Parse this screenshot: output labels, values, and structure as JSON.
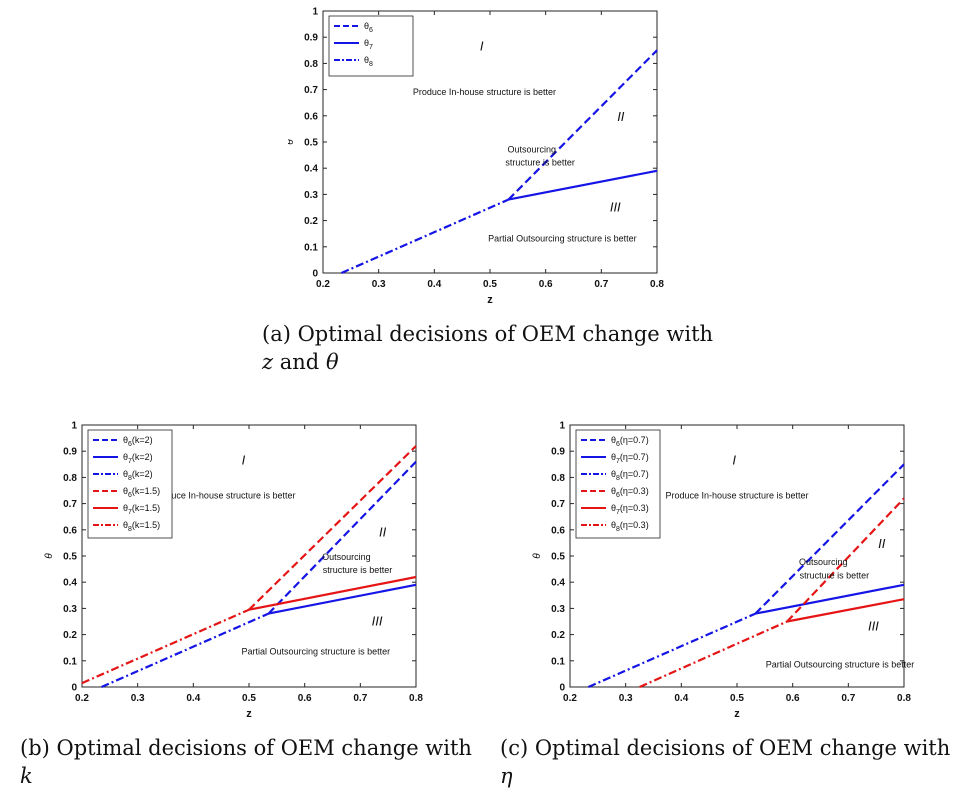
{
  "colors": {
    "blue": "#1515e6",
    "red": "#e51515",
    "axis": "#262626",
    "text": "#111111"
  },
  "chart_data": [
    {
      "id": "a",
      "type": "line",
      "caption": {
        "prefix": "(a) Optimal decisions of OEM change with",
        "var1": "z",
        "conj": "and",
        "var2": "θ"
      },
      "xlabel": "z",
      "ylabel": "θ",
      "xlim": [
        0.2,
        0.8
      ],
      "ylim": [
        0,
        1
      ],
      "xticks": [
        "0.2",
        "0.3",
        "0.4",
        "0.5",
        "0.6",
        "0.7",
        "0.8"
      ],
      "yticks": [
        "0",
        "0.1",
        "0.2",
        "0.3",
        "0.4",
        "0.5",
        "0.6",
        "0.7",
        "0.8",
        "0.9",
        "1"
      ],
      "grid": false,
      "legend_position": "top-left",
      "series": [
        {
          "base": "θ",
          "sub": "6",
          "param": "",
          "color": "blue",
          "style": "dashed",
          "x": [
            0.533,
            0.8
          ],
          "y": [
            0.28,
            0.85
          ]
        },
        {
          "base": "θ",
          "sub": "7",
          "param": "",
          "color": "blue",
          "style": "solid",
          "x": [
            0.533,
            0.8
          ],
          "y": [
            0.28,
            0.39
          ]
        },
        {
          "base": "θ",
          "sub": "8",
          "param": "",
          "color": "blue",
          "style": "dashdot",
          "x": [
            0.233,
            0.533
          ],
          "y": [
            0.0,
            0.28
          ]
        }
      ],
      "annotations": [
        {
          "text": "I",
          "x": 0.485,
          "y": 0.85,
          "italic": true,
          "size": 13
        },
        {
          "text": "Produce In-house structure is better",
          "x": 0.49,
          "y": 0.68,
          "italic": false,
          "size": 9
        },
        {
          "text": "II",
          "x": 0.735,
          "y": 0.58,
          "italic": true,
          "size": 13
        },
        {
          "text": "Outsourcing",
          "x": 0.575,
          "y": 0.46,
          "italic": false,
          "size": 9
        },
        {
          "text": "structure is better",
          "x": 0.59,
          "y": 0.41,
          "italic": false,
          "size": 9
        },
        {
          "text": "III",
          "x": 0.725,
          "y": 0.235,
          "italic": true,
          "size": 13
        },
        {
          "text": "Partial Outsourcing structure is better",
          "x": 0.63,
          "y": 0.12,
          "italic": false,
          "size": 9
        }
      ]
    },
    {
      "id": "b",
      "type": "line",
      "caption": {
        "prefix": "(b) Optimal decisions of OEM change with",
        "var1": "k",
        "conj": "",
        "var2": ""
      },
      "xlabel": "z",
      "ylabel": "θ",
      "xlim": [
        0.2,
        0.8
      ],
      "ylim": [
        0,
        1
      ],
      "xticks": [
        "0.2",
        "0.3",
        "0.4",
        "0.5",
        "0.6",
        "0.7",
        "0.8"
      ],
      "yticks": [
        "0",
        "0.1",
        "0.2",
        "0.3",
        "0.4",
        "0.5",
        "0.6",
        "0.7",
        "0.8",
        "0.9",
        "1"
      ],
      "grid": false,
      "legend_position": "top-left",
      "series": [
        {
          "base": "θ",
          "sub": "6",
          "param": "(k=2)",
          "color": "blue",
          "style": "dashed",
          "x": [
            0.535,
            0.8
          ],
          "y": [
            0.28,
            0.86
          ]
        },
        {
          "base": "θ",
          "sub": "7",
          "param": "(k=2)",
          "color": "blue",
          "style": "solid",
          "x": [
            0.535,
            0.8
          ],
          "y": [
            0.28,
            0.39
          ]
        },
        {
          "base": "θ",
          "sub": "8",
          "param": "(k=2)",
          "color": "blue",
          "style": "dashdot",
          "x": [
            0.235,
            0.535
          ],
          "y": [
            0.0,
            0.28
          ]
        },
        {
          "base": "θ",
          "sub": "6",
          "param": "(k=1.5)",
          "color": "red",
          "style": "dashed",
          "x": [
            0.5,
            0.8
          ],
          "y": [
            0.295,
            0.92
          ]
        },
        {
          "base": "θ",
          "sub": "7",
          "param": "(k=1.5)",
          "color": "red",
          "style": "solid",
          "x": [
            0.5,
            0.8
          ],
          "y": [
            0.295,
            0.42
          ]
        },
        {
          "base": "θ",
          "sub": "8",
          "param": "(k=1.5)",
          "color": "red",
          "style": "dashdot",
          "x": [
            0.2,
            0.5
          ],
          "y": [
            0.015,
            0.295
          ]
        }
      ],
      "annotations": [
        {
          "text": "I",
          "x": 0.49,
          "y": 0.85,
          "italic": true,
          "size": 13
        },
        {
          "text": "Produce In-house structure is better",
          "x": 0.455,
          "y": 0.72,
          "italic": false,
          "size": 9
        },
        {
          "text": "II",
          "x": 0.74,
          "y": 0.575,
          "italic": true,
          "size": 13
        },
        {
          "text": "Outsourcing",
          "x": 0.675,
          "y": 0.485,
          "italic": false,
          "size": 9
        },
        {
          "text": "structure is better",
          "x": 0.695,
          "y": 0.435,
          "italic": false,
          "size": 9
        },
        {
          "text": "III",
          "x": 0.73,
          "y": 0.235,
          "italic": true,
          "size": 13
        },
        {
          "text": "Partial Outsourcing structure is better",
          "x": 0.62,
          "y": 0.125,
          "italic": false,
          "size": 9
        }
      ]
    },
    {
      "id": "c",
      "type": "line",
      "caption": {
        "prefix": "(c) Optimal decisions of OEM change with",
        "var1": "η",
        "conj": "",
        "var2": ""
      },
      "xlabel": "z",
      "ylabel": "θ",
      "xlim": [
        0.2,
        0.8
      ],
      "ylim": [
        0,
        1
      ],
      "xticks": [
        "0.2",
        "0.3",
        "0.4",
        "0.5",
        "0.6",
        "0.7",
        "0.8"
      ],
      "yticks": [
        "0",
        "0.1",
        "0.2",
        "0.3",
        "0.4",
        "0.5",
        "0.6",
        "0.7",
        "0.8",
        "0.9",
        "1"
      ],
      "grid": false,
      "legend_position": "top-left",
      "series": [
        {
          "base": "θ",
          "sub": "6",
          "param": "(η=0.7)",
          "color": "blue",
          "style": "dashed",
          "x": [
            0.533,
            0.8
          ],
          "y": [
            0.28,
            0.85
          ]
        },
        {
          "base": "θ",
          "sub": "7",
          "param": "(η=0.7)",
          "color": "blue",
          "style": "solid",
          "x": [
            0.533,
            0.8
          ],
          "y": [
            0.28,
            0.39
          ]
        },
        {
          "base": "θ",
          "sub": "8",
          "param": "(η=0.7)",
          "color": "blue",
          "style": "dashdot",
          "x": [
            0.233,
            0.533
          ],
          "y": [
            0.0,
            0.28
          ]
        },
        {
          "base": "θ",
          "sub": "6",
          "param": "(η=0.3)",
          "color": "red",
          "style": "dashed",
          "x": [
            0.59,
            0.8
          ],
          "y": [
            0.25,
            0.72
          ]
        },
        {
          "base": "θ",
          "sub": "7",
          "param": "(η=0.3)",
          "color": "red",
          "style": "solid",
          "x": [
            0.59,
            0.8
          ],
          "y": [
            0.25,
            0.335
          ]
        },
        {
          "base": "θ",
          "sub": "8",
          "param": "(η=0.3)",
          "color": "red",
          "style": "dashdot",
          "x": [
            0.325,
            0.59
          ],
          "y": [
            0.0,
            0.25
          ]
        }
      ],
      "annotations": [
        {
          "text": "I",
          "x": 0.495,
          "y": 0.85,
          "italic": true,
          "size": 13
        },
        {
          "text": "Produce In-house structure is better",
          "x": 0.5,
          "y": 0.72,
          "italic": false,
          "size": 9
        },
        {
          "text": "II",
          "x": 0.76,
          "y": 0.53,
          "italic": true,
          "size": 13
        },
        {
          "text": "Outsourcing",
          "x": 0.655,
          "y": 0.465,
          "italic": false,
          "size": 9
        },
        {
          "text": "structure is better",
          "x": 0.675,
          "y": 0.415,
          "italic": false,
          "size": 9
        },
        {
          "text": "III",
          "x": 0.745,
          "y": 0.215,
          "italic": true,
          "size": 13
        },
        {
          "text": "Partial Outsourcing structure is better",
          "x": 0.685,
          "y": 0.075,
          "italic": false,
          "size": 9
        }
      ]
    }
  ]
}
